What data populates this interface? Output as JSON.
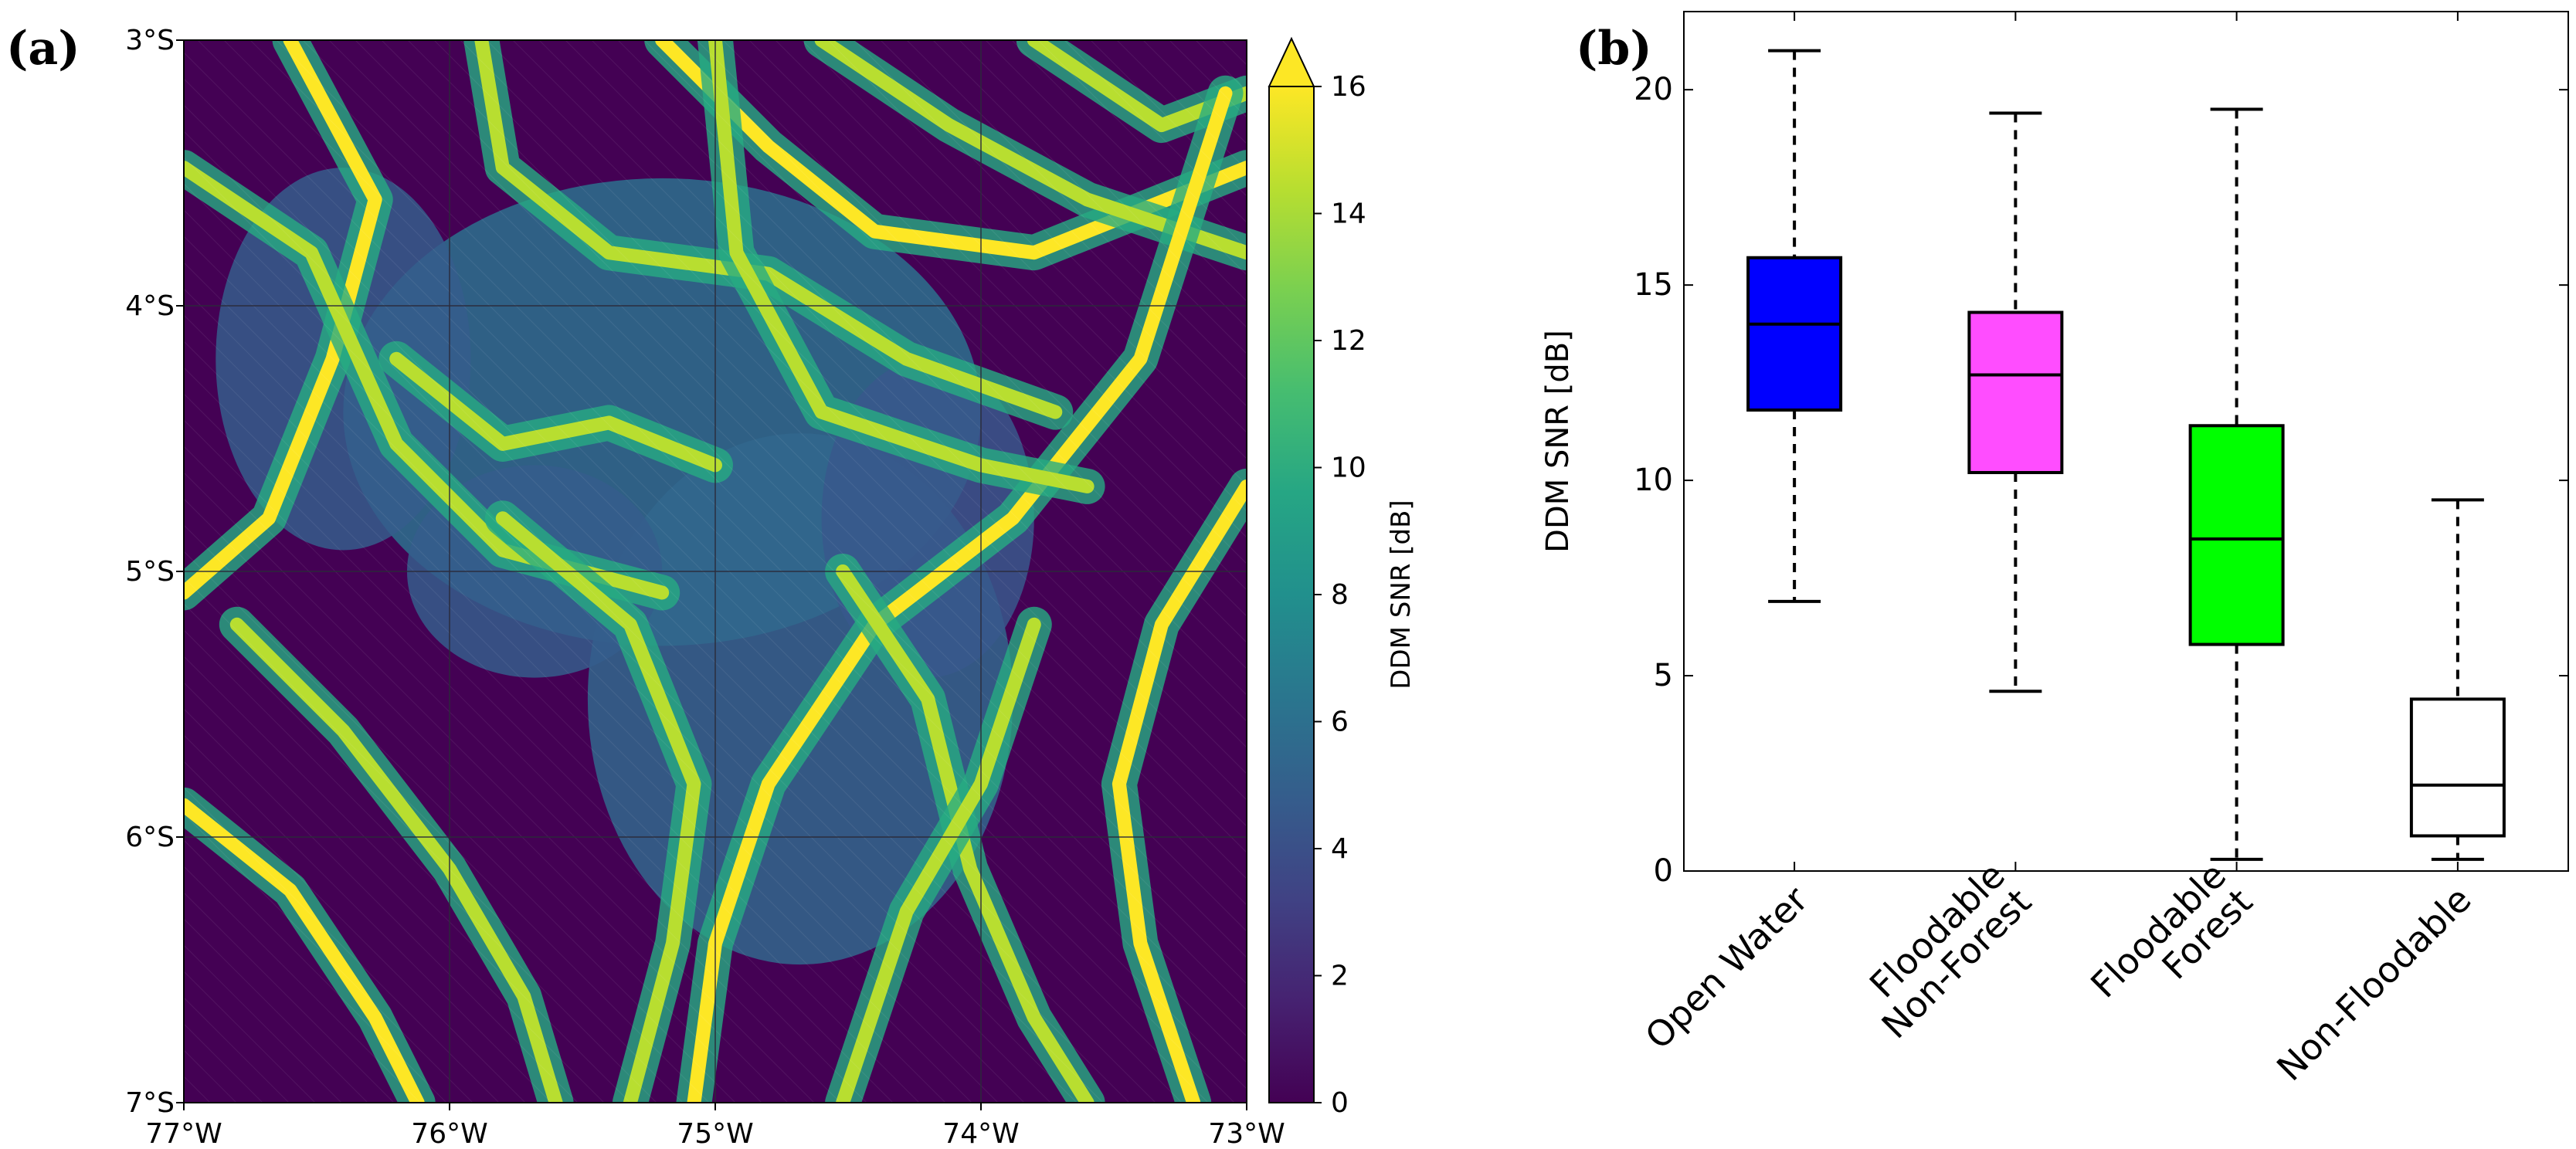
{
  "panel_labels": {
    "a": "(a)",
    "b": "(b)"
  },
  "colors": {
    "map_low": "#440154",
    "map_mid": "#21918c",
    "map_high": "#fde725",
    "grid": "#2b2b3a"
  },
  "chart_data": [
    {
      "type": "heatmap",
      "title": "",
      "xlabel": "",
      "ylabel": "",
      "x_ticks": [
        "77°W",
        "76°W",
        "75°W",
        "74°W",
        "73°W"
      ],
      "x_range": [
        -77,
        -73
      ],
      "y_ticks": [
        "3°S",
        "4°S",
        "5°S",
        "6°S",
        "7°S"
      ],
      "y_range": [
        -7,
        -3
      ],
      "colorbar": {
        "label": "DDM SNR [dB]",
        "ticks": [
          "0",
          "2",
          "4",
          "6",
          "8",
          "10",
          "12",
          "14",
          "16"
        ],
        "range": [
          0,
          16
        ],
        "extend": "max",
        "colormap": "viridis"
      }
    },
    {
      "type": "box",
      "title": "",
      "ylabel": "DDM SNR [dB]",
      "ylim": [
        0,
        22
      ],
      "y_ticks": [
        "0",
        "5",
        "10",
        "15",
        "20"
      ],
      "categories": [
        "Open Water",
        "Floodable Non-Forest",
        "Floodable Forest",
        "Non-Floodable"
      ],
      "category_lines": [
        [
          "Open Water"
        ],
        [
          "Floodable",
          "Non-Forest"
        ],
        [
          "Floodable",
          "Forest"
        ],
        [
          "Non-Floodable"
        ]
      ],
      "boxes": [
        {
          "whisker_low": 6.9,
          "q1": 11.8,
          "median": 14.0,
          "q3": 15.7,
          "whisker_high": 21.0,
          "color": "#0000ff"
        },
        {
          "whisker_low": 4.6,
          "q1": 10.2,
          "median": 12.7,
          "q3": 14.3,
          "whisker_high": 19.4,
          "color": "#ff4dff"
        },
        {
          "whisker_low": 0.3,
          "q1": 5.8,
          "median": 8.5,
          "q3": 11.4,
          "whisker_high": 19.5,
          "color": "#00ff00"
        },
        {
          "whisker_low": 0.3,
          "q1": 0.9,
          "median": 2.2,
          "q3": 4.4,
          "whisker_high": 9.5,
          "color": "#ffffff"
        }
      ]
    }
  ]
}
